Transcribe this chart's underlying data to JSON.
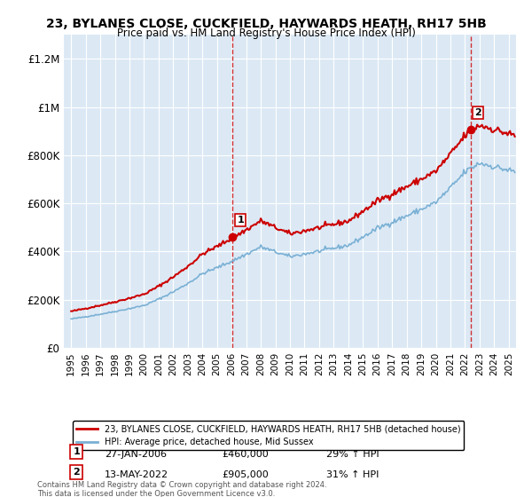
{
  "title": "23, BYLANES CLOSE, CUCKFIELD, HAYWARDS HEATH, RH17 5HB",
  "subtitle": "Price paid vs. HM Land Registry's House Price Index (HPI)",
  "legend_line1": "23, BYLANES CLOSE, CUCKFIELD, HAYWARDS HEATH, RH17 5HB (detached house)",
  "legend_line2": "HPI: Average price, detached house, Mid Sussex",
  "annotation1_label": "1",
  "annotation1_date": "27-JAN-2006",
  "annotation1_price": "£460,000",
  "annotation1_hpi": "29% ↑ HPI",
  "annotation2_label": "2",
  "annotation2_date": "13-MAY-2022",
  "annotation2_price": "£905,000",
  "annotation2_hpi": "31% ↑ HPI",
  "footnote": "Contains HM Land Registry data © Crown copyright and database right 2024.\nThis data is licensed under the Open Government Licence v3.0.",
  "sale1_year": 2006.07,
  "sale1_price": 460000,
  "sale2_year": 2022.37,
  "sale2_price": 905000,
  "background_color": "#dce9f5",
  "line_color_red": "#cc0000",
  "line_color_blue": "#7ab0d4",
  "marker_color_red": "#cc0000",
  "vline_color": "#cc0000",
  "ylim_min": 0,
  "ylim_max": 1300000,
  "xlim_min": 1994.5,
  "xlim_max": 2025.5
}
